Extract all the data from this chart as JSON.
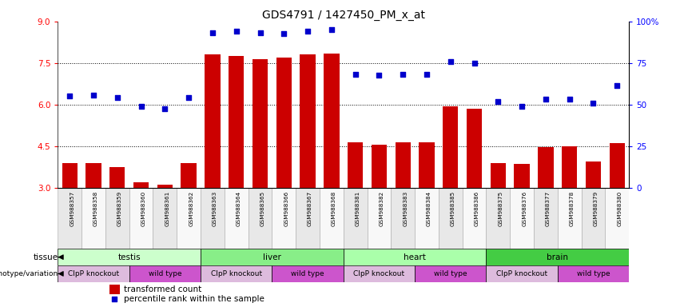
{
  "title": "GDS4791 / 1427450_PM_x_at",
  "samples": [
    "GSM988357",
    "GSM988358",
    "GSM988359",
    "GSM988360",
    "GSM988361",
    "GSM988362",
    "GSM988363",
    "GSM988364",
    "GSM988365",
    "GSM988366",
    "GSM988367",
    "GSM988368",
    "GSM988381",
    "GSM988382",
    "GSM988383",
    "GSM988384",
    "GSM988385",
    "GSM988386",
    "GSM988375",
    "GSM988376",
    "GSM988377",
    "GSM988378",
    "GSM988379",
    "GSM988380"
  ],
  "bar_values": [
    3.9,
    3.9,
    3.75,
    3.2,
    3.1,
    3.9,
    7.8,
    7.75,
    7.65,
    7.7,
    7.8,
    7.85,
    4.65,
    4.55,
    4.65,
    4.65,
    5.95,
    5.85,
    3.9,
    3.85,
    4.45,
    4.5,
    3.95,
    4.6
  ],
  "dot_values": [
    6.3,
    6.35,
    6.25,
    5.95,
    5.85,
    6.25,
    8.6,
    8.65,
    8.6,
    8.55,
    8.65,
    8.7,
    7.1,
    7.05,
    7.1,
    7.1,
    7.55,
    7.5,
    6.1,
    5.95,
    6.2,
    6.2,
    6.05,
    6.7
  ],
  "bar_color": "#cc0000",
  "dot_color": "#0000cc",
  "ylim_left": [
    3,
    9
  ],
  "yticks_left": [
    3,
    4.5,
    6,
    7.5,
    9
  ],
  "ylim_right": [
    0,
    100
  ],
  "yticks_right": [
    0,
    25,
    50,
    75,
    100
  ],
  "hlines": [
    4.5,
    6.0,
    7.5
  ],
  "tissue_groups": [
    {
      "label": "testis",
      "start": 0,
      "end": 6,
      "color": "#ccffcc"
    },
    {
      "label": "liver",
      "start": 6,
      "end": 12,
      "color": "#88ee88"
    },
    {
      "label": "heart",
      "start": 12,
      "end": 18,
      "color": "#aaffaa"
    },
    {
      "label": "brain",
      "start": 18,
      "end": 24,
      "color": "#44cc44"
    }
  ],
  "genotype_groups": [
    {
      "label": "ClpP knockout",
      "start": 0,
      "end": 3,
      "color": "#ddbbdd"
    },
    {
      "label": "wild type",
      "start": 3,
      "end": 6,
      "color": "#cc55cc"
    },
    {
      "label": "ClpP knockout",
      "start": 6,
      "end": 9,
      "color": "#ddbbdd"
    },
    {
      "label": "wild type",
      "start": 9,
      "end": 12,
      "color": "#cc55cc"
    },
    {
      "label": "ClpP knockout",
      "start": 12,
      "end": 15,
      "color": "#ddbbdd"
    },
    {
      "label": "wild type",
      "start": 15,
      "end": 18,
      "color": "#cc55cc"
    },
    {
      "label": "ClpP knockout",
      "start": 18,
      "end": 21,
      "color": "#ddbbdd"
    },
    {
      "label": "wild type",
      "start": 21,
      "end": 24,
      "color": "#cc55cc"
    }
  ],
  "tissue_label": "tissue",
  "genotype_label": "genotype/variation",
  "legend_bar": "transformed count",
  "legend_dot": "percentile rank within the sample",
  "bg_color": "#ffffff",
  "cell_bg_odd": "#e8e8e8",
  "cell_bg_even": "#f8f8f8"
}
